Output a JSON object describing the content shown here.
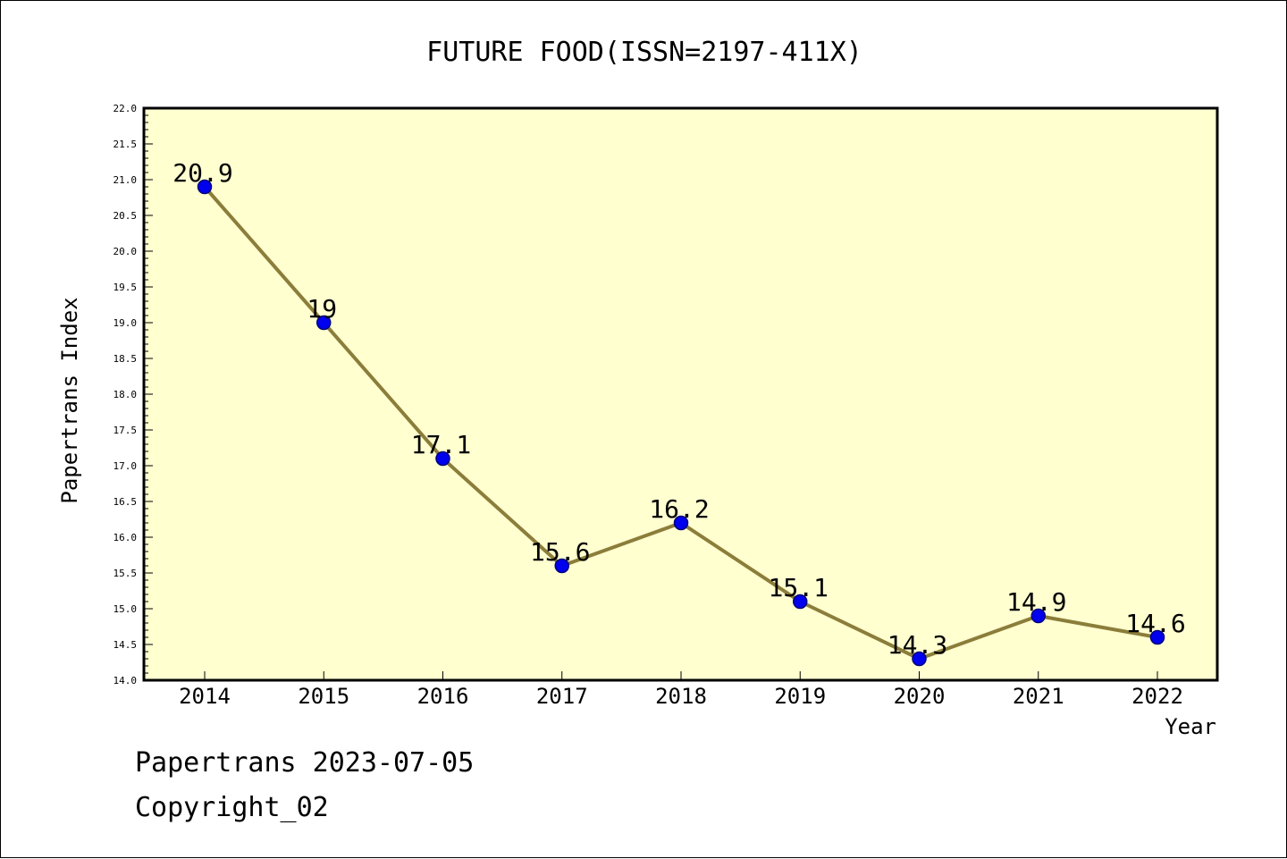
{
  "chart_data": {
    "type": "line",
    "title": "FUTURE FOOD(ISSN=2197-411X)",
    "xlabel": "Year",
    "ylabel": "Papertrans Index",
    "categories": [
      "2014",
      "2015",
      "2016",
      "2017",
      "2018",
      "2019",
      "2020",
      "2021",
      "2022"
    ],
    "series": [
      {
        "values": [
          20.9,
          19,
          17.1,
          15.6,
          16.2,
          15.1,
          14.3,
          14.9,
          14.6
        ]
      }
    ],
    "data_labels": [
      "20.9",
      "19",
      "17.1",
      "15.6",
      "16.2",
      "15.1",
      "14.3",
      "14.9",
      "14.6"
    ],
    "ylim": [
      14.0,
      22.0
    ],
    "yticks": [
      "14.0",
      "14.5",
      "15.0",
      "15.5",
      "16.0",
      "16.5",
      "17.0",
      "17.5",
      "18.0",
      "18.5",
      "19.0",
      "19.5",
      "20.0",
      "20.5",
      "21.0",
      "21.5",
      "22.0"
    ],
    "grid": false,
    "legend": "none",
    "colors": {
      "plot_background": "#ffffd0",
      "line": "#8b7d3a",
      "marker_fill": "#0000ee",
      "marker_stroke": "#000080"
    }
  },
  "footer": {
    "line1": "Papertrans 2023-07-05",
    "line2": "Copyright_02"
  }
}
